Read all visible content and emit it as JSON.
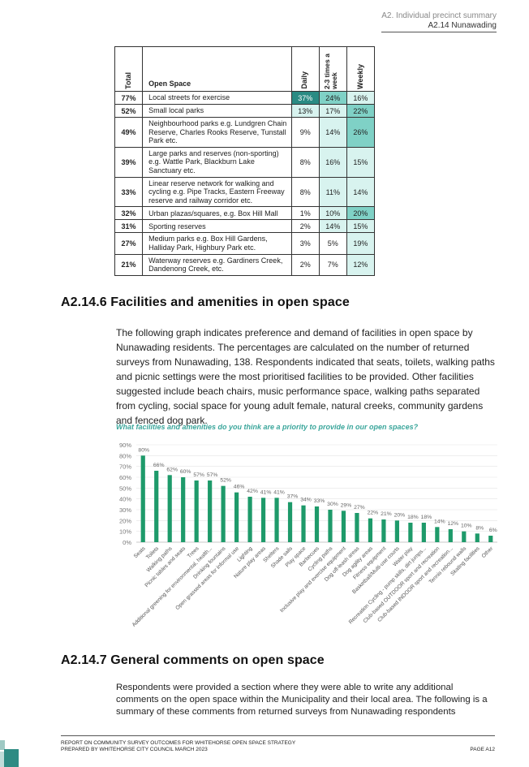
{
  "header": {
    "section": "A2. Individual precinct summary",
    "subsection": "A2.14 Nunawading"
  },
  "table": {
    "headers": {
      "total": "Total",
      "open_space": "Open Space",
      "daily": "Daily",
      "two_three": "2-3 times a week",
      "weekly": "Weekly"
    },
    "rows": [
      {
        "total": "77%",
        "space": "Local streets for exercise",
        "daily": "37%",
        "twothree": "24%",
        "weekly": "16%"
      },
      {
        "total": "52%",
        "space": "Small local parks",
        "daily": "13%",
        "twothree": "17%",
        "weekly": "22%"
      },
      {
        "total": "49%",
        "space": "Neighbourhood parks e.g. Lundgren Chain Reserve, Charles Rooks Reserve, Tunstall Park etc.",
        "daily": "9%",
        "twothree": "14%",
        "weekly": "26%"
      },
      {
        "total": "39%",
        "space": "Large parks and reserves (non-sporting) e.g. Wattle Park, Blackburn Lake Sanctuary etc.",
        "daily": "8%",
        "twothree": "16%",
        "weekly": "15%"
      },
      {
        "total": "33%",
        "space": "Linear reserve network for walking and cycling e.g. Pipe Tracks, Eastern Freeway reserve and railway corridor etc.",
        "daily": "8%",
        "twothree": "11%",
        "weekly": "14%"
      },
      {
        "total": "32%",
        "space": "Urban plazas/squares, e.g. Box Hill Mall",
        "daily": "1%",
        "twothree": "10%",
        "weekly": "20%"
      },
      {
        "total": "31%",
        "space": "Sporting reserves",
        "daily": "2%",
        "twothree": "14%",
        "weekly": "15%"
      },
      {
        "total": "27%",
        "space": "Medium parks e.g. Box Hill Gardens, Halliday Park, Highbury Park etc.",
        "daily": "3%",
        "twothree": "5%",
        "weekly": "19%"
      },
      {
        "total": "21%",
        "space": "Waterway reserves e.g. Gardiners Creek, Dandenong Creek, etc.",
        "daily": "2%",
        "twothree": "7%",
        "weekly": "12%"
      }
    ]
  },
  "section6": {
    "heading": "A2.14.6  Facilities and amenities in open space",
    "paragraph": "The following graph indicates preference and demand of facilities in open space by Nunawading residents. The percentages are calculated on the number of returned surveys from Nunawading, 138. Respondents indicated that seats, toilets, walking paths and picnic settings were the most prioritised facilities to be provided. Other facilities suggested include beach chairs, music performance space, walking paths separated from cycling, social space for young adult female, natural creeks, community gardens and fenced dog park."
  },
  "chart_data": {
    "type": "bar",
    "title": "What facilities and amenities do you think are a priority to provide in our open spaces?",
    "categories": [
      "Seats",
      "Toilets",
      "Walking paths",
      "Picnic tables and seats",
      "Trees",
      "Additional greening for environmental, health...",
      "Drinking fountains",
      "Open grassed areas for informal use",
      "Lighting",
      "Nature play areas",
      "Shelters",
      "Shade sails",
      "Play space",
      "Barbecues",
      "Cycling paths",
      "Inclusive play and exercise equipment",
      "Dog off-leash areas",
      "Dog agility areas",
      "Fitness equipment",
      "Basketball/Multi-use courts",
      "Water play",
      "Recreation Cycling - pump skills, dirt jumps...",
      "Club-based OUTDOOR sport and recreation",
      "Club-based INDOOR sport and recreation...",
      "Tennis rebound walls",
      "Skating facilities",
      "Other"
    ],
    "values": [
      80,
      66,
      62,
      60,
      57,
      57,
      52,
      46,
      42,
      41,
      41,
      37,
      34,
      33,
      30,
      29,
      27,
      22,
      21,
      20,
      18,
      18,
      14,
      12,
      10,
      8,
      6
    ],
    "value_labels": [
      "80%",
      "66%",
      "62%",
      "60%",
      "57%",
      "57%",
      "52%",
      "46%",
      "42%",
      "41%",
      "41%",
      "37%",
      "34%",
      "33%",
      "30%",
      "29%",
      "27%",
      "22%",
      "21%",
      "20%",
      "18%",
      "18%",
      "14%",
      "12%",
      "10%",
      "8%",
      "6%"
    ],
    "yticks": [
      "0%",
      "10%",
      "20%",
      "30%",
      "40%",
      "50%",
      "60%",
      "70%",
      "80%",
      "90%"
    ],
    "ylim": [
      0,
      90
    ],
    "bar_color": "#1e9a6a",
    "grid": true
  },
  "section7": {
    "heading": "A2.14.7  General comments on open space",
    "paragraph": "Respondents were provided a section where they were able to write any additional comments on the open space within the Municipality and their local area.  The following is a summary of these comments from returned surveys from Nunawading respondents"
  },
  "footer": {
    "line1": "REPORT ON COMMUNITY SURVEY OUTCOMES FOR WHITEHORSE OPEN SPACE STRATEGY",
    "line2": "PREPARED BY WHITEHORSE CITY COUNCIL MARCH 2023",
    "page": "PAGE A12"
  },
  "colors": {
    "heat_dark": "#2a8b83",
    "heat_mid": "#7fd1c6",
    "heat_light": "#d8f3ef",
    "accent": "#3aa69b"
  }
}
